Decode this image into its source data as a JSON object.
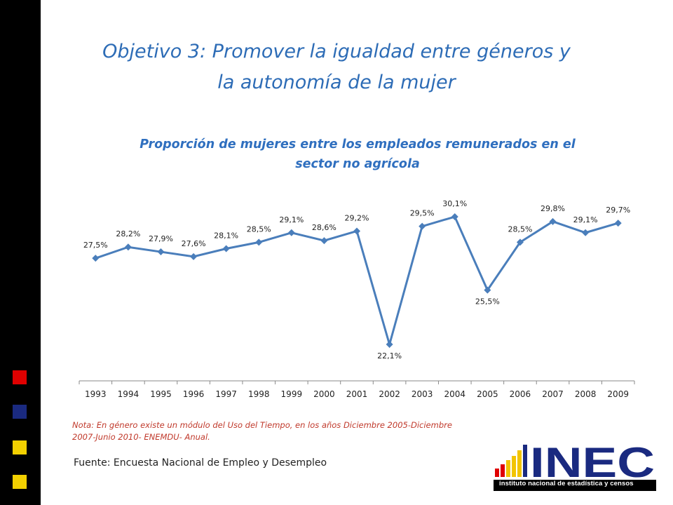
{
  "slide": {
    "title_line1": "Objetivo 3: Promover la igualdad entre géneros y",
    "title_line2": "la autonomía de la mujer"
  },
  "decor": {
    "square_colors": [
      "#e00000",
      "#1a2a80",
      "#f2d000",
      "#f2d000"
    ]
  },
  "chart_data": {
    "type": "line",
    "title_line1": "Proporción de mujeres entre los empleados remunerados en el",
    "title_line2": "sector no agrícola",
    "categories": [
      "1993",
      "1994",
      "1995",
      "1996",
      "1997",
      "1998",
      "1999",
      "2000",
      "2001",
      "2002",
      "2003",
      "2004",
      "2005",
      "2006",
      "2007",
      "2008",
      "2009"
    ],
    "values": [
      27.5,
      28.2,
      27.9,
      27.6,
      28.1,
      28.5,
      29.1,
      28.6,
      29.2,
      22.1,
      29.5,
      30.1,
      25.5,
      28.5,
      29.8,
      29.1,
      29.7
    ],
    "labels": [
      "27,5%",
      "28,2%",
      "27,9%",
      "27,6%",
      "28,1%",
      "28,5%",
      "29,1%",
      "28,6%",
      "29,2%",
      "22,1%",
      "29,5%",
      "30,1%",
      "25,5%",
      "28,5%",
      "29,8%",
      "29,1%",
      "29,7%"
    ],
    "label_positions": [
      "above",
      "above",
      "above",
      "above",
      "above",
      "above",
      "above",
      "above",
      "above",
      "below",
      "above",
      "above",
      "below",
      "above",
      "above",
      "above",
      "above"
    ],
    "line_color": "#4a7ebb",
    "xlabel": "",
    "ylabel": "",
    "grid": false
  },
  "footer": {
    "nota_line1": "Nota: En género existe un módulo del Uso del Tiempo, en los años Diciembre 2005-Diciembre",
    "nota_line2": "2007-Junio 2010- ENEMDU- Anual.",
    "fuente": "Fuente: Encuesta Nacional de Empleo y Desempleo"
  },
  "logo": {
    "text": "INEC",
    "caption": "instituto nacional de estadística y censos",
    "bar_colors": [
      "#e00000",
      "#f2c400",
      "#1a2a80"
    ]
  }
}
